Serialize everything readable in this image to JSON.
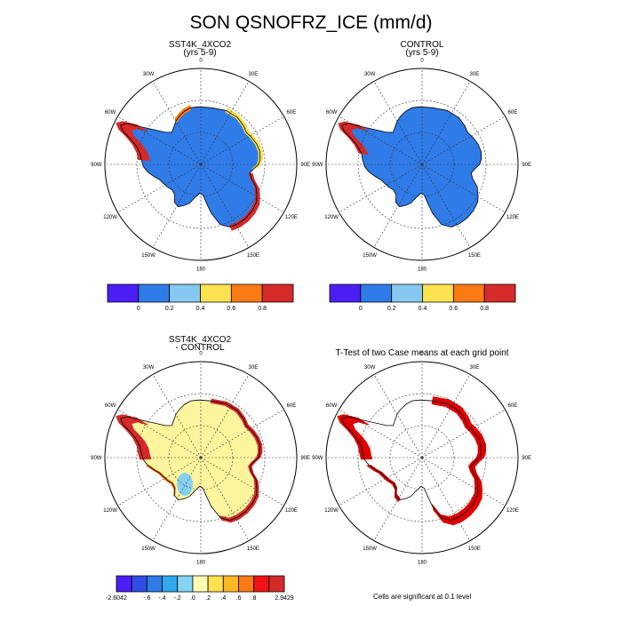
{
  "title": "SON QSNOFRZ_ICE (mm/d)",
  "panels": [
    {
      "title_line1": "SST4K_4XCO2",
      "title_line2": "(yrs 5-9)"
    },
    {
      "title_line1": "CONTROL",
      "title_line2": "(yrs 5-9)"
    },
    {
      "title_line1": "SST4K_4XCO2",
      "title_line2": "- CONTROL"
    },
    {
      "title_line1": "T-Test of two Case means at each grid point",
      "title_line2": ""
    }
  ],
  "longitude_labels": [
    "0",
    "30E",
    "60E",
    "90E",
    "120E",
    "150E",
    "180",
    "150W",
    "120W",
    "90W",
    "60W",
    "30W"
  ],
  "colorbar_abs": {
    "colors": [
      "#4b1ef5",
      "#2f7be8",
      "#86c8ef",
      "#fde34f",
      "#fb7a13",
      "#d52a2a"
    ],
    "tick_labels": [
      "0",
      "0.2",
      "0.4",
      "0.6",
      "0.8"
    ]
  },
  "colorbar_diff": {
    "colors": [
      "#4b1ef5",
      "#2f4ee6",
      "#2f7be8",
      "#2fa8ee",
      "#86d2f2",
      "#fffbb5",
      "#fde34f",
      "#fbb826",
      "#fb7a13",
      "#ef1414",
      "#d52a2a"
    ],
    "tick_labels": [
      "-2.6042",
      "-.6",
      "-.4",
      "-.2",
      ".0",
      ".2",
      ".4",
      ".6",
      ".8",
      "2.9429"
    ]
  },
  "footnote": "Cells are significant at 0.1 level",
  "map_colors": {
    "land_abs": "#2f7be8",
    "land_diff": "#fdf59d",
    "coast_red": "#d52a2a",
    "coast_orange": "#fb7a13",
    "coast_yellow": "#fde34f",
    "significant": "#e00000"
  }
}
